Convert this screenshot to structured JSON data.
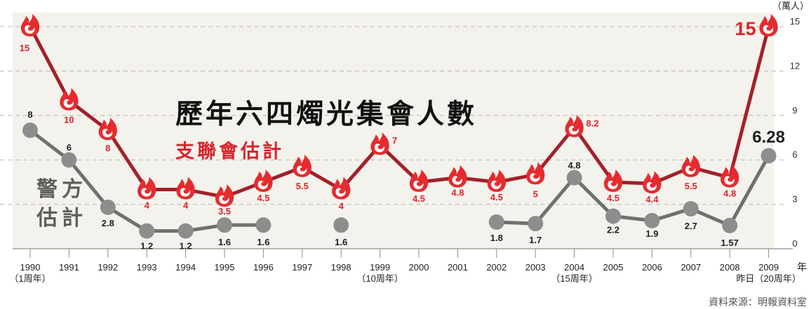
{
  "chart_data": {
    "type": "line",
    "title": "歷年六四燭光集會人數",
    "categories": [
      "1990",
      "1991",
      "1992",
      "1993",
      "1994",
      "1995",
      "1996",
      "1997",
      "1998",
      "1999",
      "2000",
      "2001",
      "2002",
      "2003",
      "2004",
      "2005",
      "2006",
      "2007",
      "2008",
      "2009"
    ],
    "x_notes": [
      {
        "year": "1990",
        "text": "（1周年）"
      },
      {
        "year": "1999",
        "text": "（10周年）"
      },
      {
        "year": "2004",
        "text": "（15周年）"
      },
      {
        "year": "2009",
        "text": "昨日（20周年）"
      }
    ],
    "xlabel": "年",
    "ylabel": "（萬人）",
    "ylim": [
      0,
      15
    ],
    "yticks": [
      0,
      3,
      6,
      9,
      12,
      15
    ],
    "grid": true,
    "series": [
      {
        "name": "支聯會估計",
        "color": "#a3202a",
        "marker": "flame-icon",
        "marker_color": "#e52b2f",
        "values": [
          15,
          10,
          8,
          4,
          4,
          3.5,
          4.5,
          5.5,
          4,
          7,
          4.5,
          4.8,
          4.5,
          5,
          8.2,
          4.5,
          4.4,
          5.5,
          4.8,
          15
        ]
      },
      {
        "name": "警方估計",
        "color": "#707070",
        "marker": "circle",
        "marker_color": "#8d8d8d",
        "values": [
          8,
          6,
          2.8,
          1.2,
          1.2,
          1.6,
          1.6,
          null,
          1.6,
          null,
          null,
          null,
          1.8,
          1.7,
          4.8,
          2.2,
          1.9,
          2.7,
          1.57,
          6.28
        ]
      }
    ]
  },
  "source": "資料來源：明報資料室"
}
